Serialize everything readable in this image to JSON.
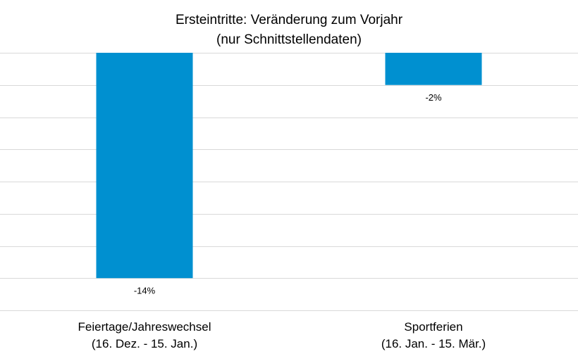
{
  "chart_data": {
    "type": "bar",
    "title": "Ersteintritte: Veränderung zum Vorjahr",
    "subtitle": "(nur Schnittstellendaten)",
    "categories": [
      {
        "line1": "Feiertage/Jahreswechsel",
        "line2": "(16. Dez. - 15. Jan.)"
      },
      {
        "line1": "Sportferien",
        "line2": "(16. Jan. - 15. Mär.)"
      }
    ],
    "values": [
      -14,
      -2
    ],
    "data_labels": [
      "-14%",
      "-2%"
    ],
    "unit": "%",
    "ylim": [
      -16,
      0
    ],
    "ytick_step": 2,
    "grid": true,
    "xlabel": "",
    "ylabel": "",
    "bar_color": "#0090d0",
    "grid_color": "#d9d9d9"
  }
}
